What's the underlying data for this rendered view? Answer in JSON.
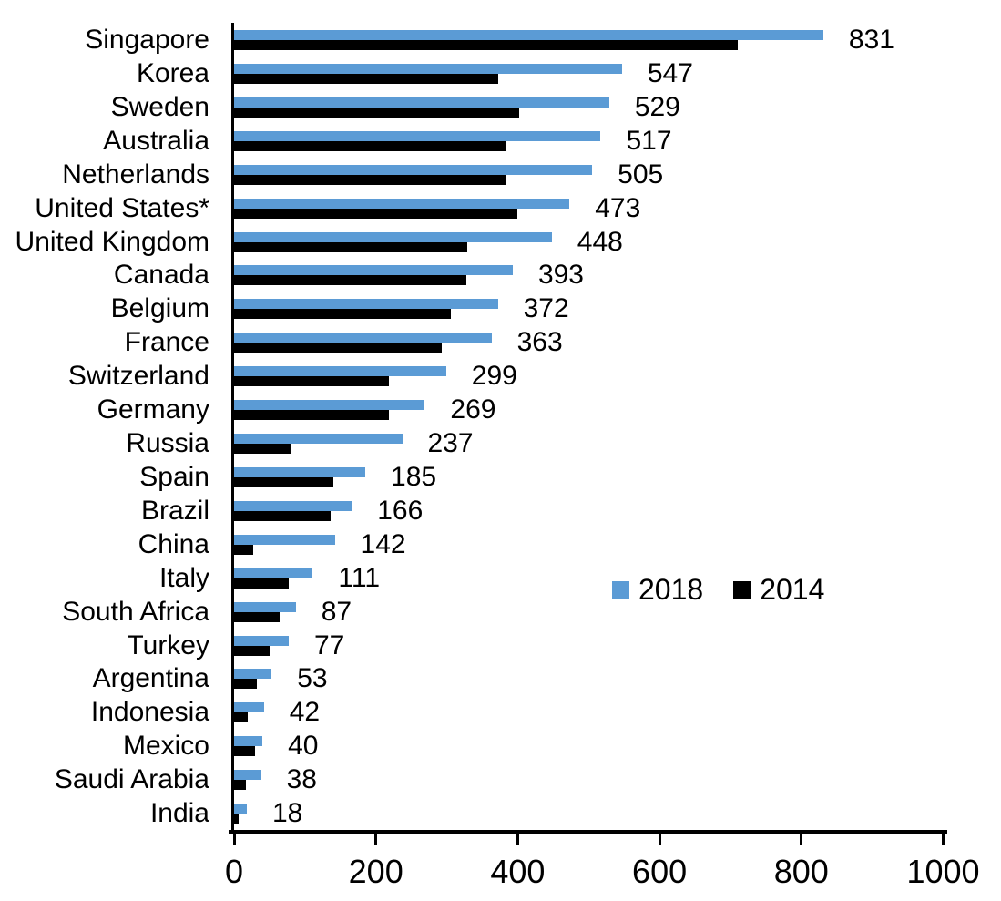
{
  "chart_data": {
    "type": "bar",
    "orientation": "horizontal",
    "title": "",
    "xlabel": "",
    "ylabel": "",
    "categories": [
      "Singapore",
      "Korea",
      "Sweden",
      "Australia",
      "Netherlands",
      "United States*",
      "United Kingdom",
      "Canada",
      "Belgium",
      "France",
      "Switzerland",
      "Germany",
      "Russia",
      "Spain",
      "Brazil",
      "China",
      "Italy",
      "South Africa",
      "Turkey",
      "Argentina",
      "Indonesia",
      "Mexico",
      "Saudi Arabia",
      "India"
    ],
    "series": [
      {
        "name": "2018",
        "color": "#5B9BD5",
        "data_labels_shown": true,
        "values": [
          831,
          547,
          529,
          517,
          505,
          473,
          448,
          393,
          372,
          363,
          299,
          269,
          237,
          185,
          166,
          142,
          111,
          87,
          77,
          53,
          42,
          40,
          38,
          18
        ]
      },
      {
        "name": "2014",
        "color": "#000000",
        "data_labels_shown": false,
        "values_estimated_from_pixels": true,
        "values": [
          710,
          372,
          402,
          384,
          383,
          399,
          329,
          327,
          306,
          293,
          219,
          218,
          79,
          140,
          136,
          27,
          77,
          64,
          50,
          32,
          19,
          29,
          17,
          6
        ]
      }
    ],
    "xlim": [
      0,
      1000
    ],
    "x_ticks": [
      0,
      200,
      400,
      600,
      800,
      1000
    ],
    "grid": false,
    "legend": {
      "position": "center-right",
      "entries": [
        "2018",
        "2014"
      ]
    }
  },
  "colors": {
    "series_2018": "#5B9BD5",
    "series_2014": "#000000",
    "axis": "#000000",
    "text": "#000000",
    "background": "#FFFFFF"
  }
}
